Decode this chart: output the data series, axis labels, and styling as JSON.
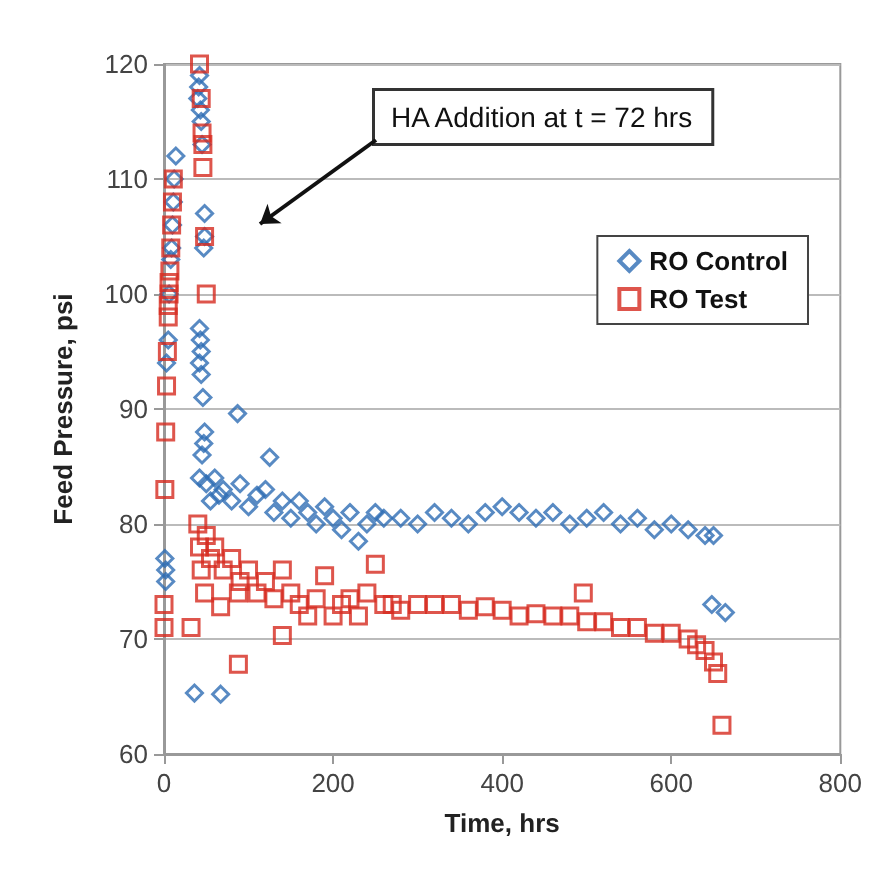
{
  "chart_data": {
    "type": "scatter",
    "xlabel": "Time, hrs",
    "ylabel": "Feed Pressure, psi",
    "xlim": [
      0,
      800
    ],
    "xticks": [
      0,
      200,
      400,
      600,
      800
    ],
    "ylim": [
      60,
      120
    ],
    "yticks": [
      60,
      70,
      80,
      90,
      100,
      110,
      120
    ],
    "grid": "y",
    "legend": "top right",
    "annotations": [
      "HA Addition at t = 72 hrs"
    ],
    "series": [
      {
        "name": "RO Control",
        "color": "#2e6db4",
        "marker": "diamond",
        "x": [
          1,
          2,
          2,
          3,
          5,
          6,
          8,
          9,
          10,
          11,
          12,
          14,
          40,
          41,
          42,
          43,
          44,
          45,
          48,
          48,
          47,
          42,
          43,
          44,
          42,
          44,
          46,
          48,
          47,
          45,
          42,
          36,
          67,
          87,
          125,
          50,
          55,
          60,
          65,
          70,
          80,
          90,
          100,
          110,
          120,
          130,
          140,
          150,
          160,
          170,
          180,
          190,
          200,
          210,
          220,
          230,
          240,
          250,
          260,
          280,
          300,
          320,
          340,
          360,
          380,
          400,
          420,
          440,
          460,
          480,
          500,
          520,
          540,
          560,
          580,
          600,
          620,
          640,
          650,
          648,
          664
        ],
        "values": [
          77,
          75,
          76,
          94,
          96,
          100,
          103,
          104,
          106,
          108,
          110,
          112,
          117,
          118,
          119,
          116,
          115,
          113,
          107,
          105,
          104,
          97,
          96,
          95,
          94,
          93,
          91,
          88,
          87,
          86,
          84,
          65.3,
          65.2,
          89.6,
          85.8,
          83.5,
          82,
          84,
          82.5,
          83,
          82,
          83.5,
          81.5,
          82.5,
          83,
          81,
          82,
          80.5,
          82,
          81,
          80,
          81.5,
          80.5,
          79.5,
          81,
          78.5,
          80,
          81,
          80.5,
          80.5,
          80,
          81,
          80.5,
          80,
          81,
          81.5,
          81,
          80.5,
          81,
          80,
          80.5,
          81,
          80,
          80.5,
          79.5,
          80,
          79.5,
          79,
          79,
          73,
          72.3
        ]
      },
      {
        "name": "RO Test",
        "color": "#d62b1f",
        "marker": "square",
        "x": [
          0,
          0,
          1,
          2,
          3,
          4,
          5,
          5,
          6,
          6,
          7,
          8,
          9,
          10,
          11,
          42,
          44,
          45,
          46,
          46,
          48,
          50,
          32,
          67,
          88,
          140,
          88,
          40,
          42,
          44,
          48,
          50,
          55,
          60,
          70,
          80,
          90,
          100,
          110,
          120,
          130,
          140,
          150,
          160,
          170,
          180,
          190,
          200,
          210,
          220,
          230,
          240,
          250,
          260,
          270,
          280,
          300,
          320,
          340,
          360,
          380,
          400,
          420,
          440,
          460,
          480,
          496,
          500,
          520,
          540,
          560,
          580,
          600,
          620,
          630,
          640,
          650,
          655,
          660
        ],
        "values": [
          71,
          73,
          83,
          88,
          92,
          95,
          98,
          99,
          100,
          101,
          102,
          104,
          106,
          108,
          110,
          120,
          117,
          114,
          111,
          113,
          105,
          100,
          71,
          72.8,
          67.8,
          70.3,
          74,
          80,
          78,
          76,
          74,
          79,
          77,
          78,
          76,
          77,
          75,
          76,
          74,
          75,
          73.5,
          76,
          74,
          73,
          72,
          73.5,
          75.5,
          72,
          73,
          73.5,
          72,
          74,
          76.5,
          73,
          73,
          72.5,
          73,
          73,
          73,
          72.5,
          72.8,
          72.5,
          72,
          72.2,
          72,
          72,
          74,
          71.5,
          71.5,
          71,
          71,
          70.5,
          70.5,
          70,
          69.5,
          69,
          68,
          67,
          62.5
        ]
      }
    ]
  }
}
